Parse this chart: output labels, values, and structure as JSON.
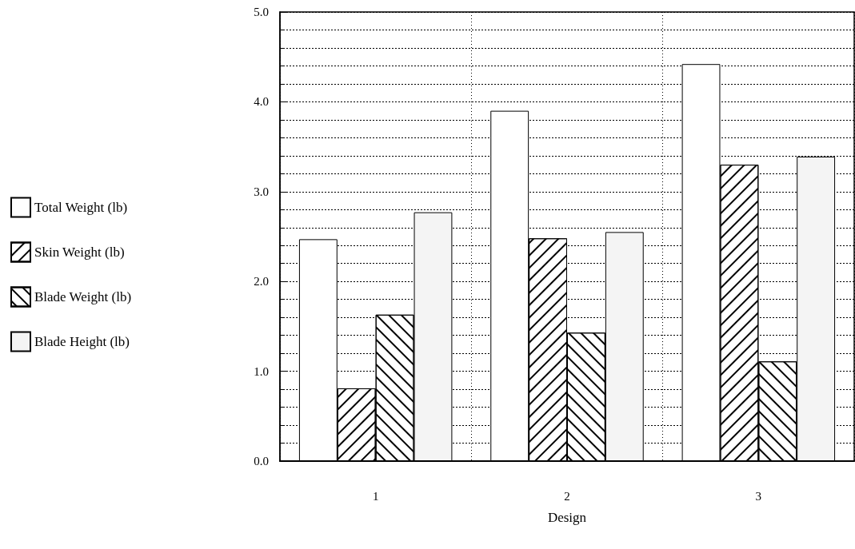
{
  "chart_data": {
    "type": "bar",
    "xlabel": "Design",
    "categories": [
      "1",
      "2",
      "3"
    ],
    "series": [
      {
        "name": "Total Weight (lb)",
        "color": "#ffffff",
        "values": [
          2.47,
          3.9,
          4.42
        ]
      },
      {
        "name": "Skin Weight (lb)",
        "color": "#ffffff",
        "values": [
          0.81,
          2.48,
          3.3
        ]
      },
      {
        "name": "Blade Weight (lb)",
        "color": "#ffffff",
        "values": [
          1.63,
          1.43,
          1.11
        ]
      },
      {
        "name": "Blade Height (lb)",
        "color": "#f4f4f4",
        "values": [
          2.77,
          2.55,
          3.39
        ]
      }
    ],
    "ylim": [
      0,
      5
    ],
    "yticks": [
      {
        "value": 0,
        "label": "0.0"
      },
      {
        "value": 1,
        "label": "1.0"
      },
      {
        "value": 2,
        "label": "2.0"
      },
      {
        "value": 3,
        "label": "3.0"
      },
      {
        "value": 4,
        "label": "4.0"
      },
      {
        "value": 5,
        "label": "5.0"
      }
    ],
    "grid": true,
    "legend": "left"
  }
}
